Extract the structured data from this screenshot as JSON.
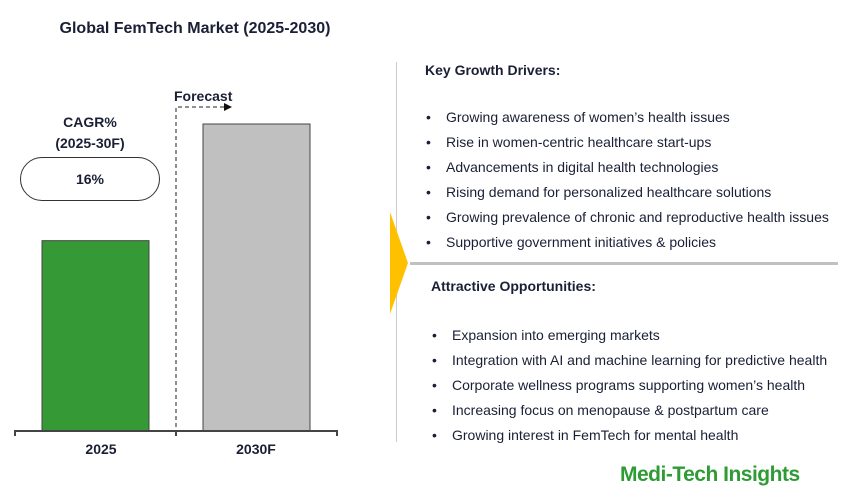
{
  "chart_data": {
    "type": "bar",
    "title": "Global FemTech Market (2025-2030)",
    "categories": [
      "2025",
      "2030F"
    ],
    "values": [
      62,
      100
    ],
    "value_note_visible": false,
    "colors": [
      "#359a35",
      "#c0c0c0"
    ],
    "forecast_label": "Forecast",
    "cagr_label": "CAGR%",
    "cagr_period": "(2025-30F)",
    "cagr_value": "16%",
    "grid": false
  },
  "drivers": {
    "heading": "Key Growth Drivers:",
    "items": [
      "Growing awareness of women’s health issues",
      "Rise in women-centric healthcare start-ups",
      "Advancements in digital health technologies",
      "Rising demand for personalized healthcare solutions",
      "Growing prevalence of chronic and reproductive health issues",
      "Supportive government initiatives & policies"
    ]
  },
  "opportunities": {
    "heading": "Attractive Opportunities:",
    "items": [
      "Expansion into emerging markets",
      "Integration with AI and machine learning for predictive health",
      "Corporate wellness programs supporting women’s health",
      "Increasing focus on menopause & postpartum care",
      "Growing interest in FemTech for mental health"
    ]
  },
  "brand": "Medi-Tech Insights",
  "accent": "#ffc000"
}
